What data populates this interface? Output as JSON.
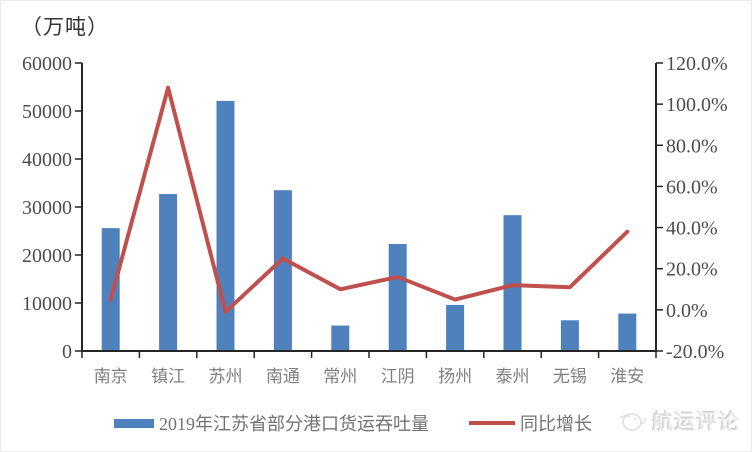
{
  "unit_label": "（万吨）",
  "legend": [
    {
      "type": "bar",
      "label": "2019年江苏省部分港口货运吞吐量",
      "color": "#4F81BD"
    },
    {
      "type": "line",
      "label": "同比增长",
      "color": "#C0504D"
    }
  ],
  "watermark": {
    "logo": "shipping-review-bird-logo",
    "text": "航运评论"
  },
  "colors": {
    "bar": "#4F81BD",
    "line": "#C0504D",
    "axis": "#262626",
    "axis_number_text": "#4d4d4d",
    "category_text": "#7f7f7f"
  },
  "chart_data": {
    "type": "bar+line combo",
    "title": "",
    "unit_label": "（万吨）",
    "categories": [
      "南京",
      "镇江",
      "苏州",
      "南通",
      "常州",
      "江阴",
      "扬州",
      "泰州",
      "无锡",
      "淮安"
    ],
    "series": [
      {
        "name": "2019年江苏省部分港口货运吞吐量",
        "type": "bar",
        "axis": "left",
        "color": "#4F81BD",
        "values": [
          25600,
          32700,
          52100,
          33500,
          5300,
          22300,
          9600,
          28300,
          6400,
          7800
        ]
      },
      {
        "name": "同比增长",
        "type": "line",
        "axis": "right",
        "color": "#C0504D",
        "values": [
          5,
          108,
          -1,
          25,
          10,
          16,
          5,
          12,
          11,
          38
        ]
      }
    ],
    "left_axis": {
      "min": 0,
      "max": 60000,
      "step": 10000,
      "unit": "万吨"
    },
    "right_axis": {
      "min": -20,
      "max": 120,
      "step": 20,
      "format": "percent_1dp"
    },
    "grid": false,
    "legend_position": "bottom"
  }
}
